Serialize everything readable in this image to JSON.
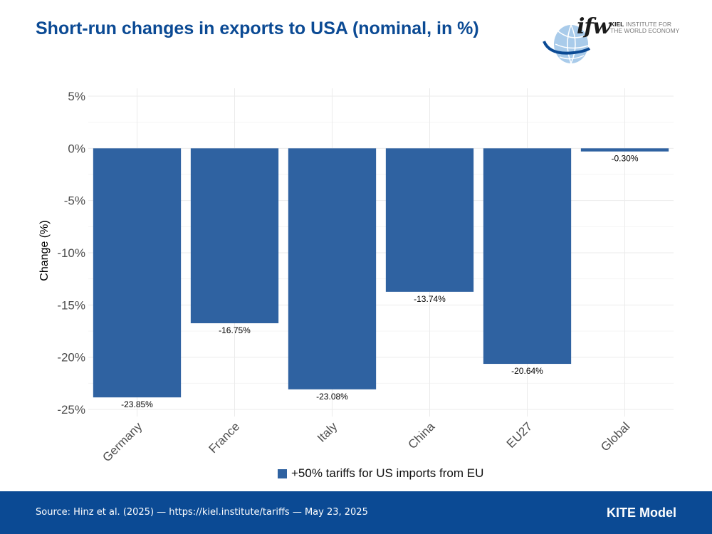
{
  "header": {
    "title": "Short-run changes in exports to USA (nominal, in %)"
  },
  "logo": {
    "mark": "ifw",
    "line1": "KIEL",
    "line1_rest": " INSTITUTE FOR",
    "line2": "THE WORLD ECONOMY"
  },
  "chart_data": {
    "type": "bar",
    "title": "Short-run changes in exports to USA (nominal, in %)",
    "xlabel": "",
    "ylabel": "Change (%)",
    "categories": [
      "Germany",
      "France",
      "Italy",
      "China",
      "EU27",
      "Global"
    ],
    "series": [
      {
        "name": "+50% tariffs for US imports from EU",
        "values": [
          -23.85,
          -16.75,
          -23.08,
          -13.74,
          -20.64,
          -0.3
        ],
        "labels": [
          "-23.85%",
          "-16.75%",
          "-23.08%",
          "-13.74%",
          "-20.64%",
          "-0.30%"
        ]
      }
    ],
    "ylim": [
      -25,
      5
    ],
    "yticks": [
      5,
      0,
      -5,
      -10,
      -15,
      -20,
      -25
    ],
    "ytick_labels": [
      "5%",
      "0%",
      "-5%",
      "-10%",
      "-15%",
      "-20%",
      "-25%"
    ],
    "grid": true,
    "legend_position": "bottom-center"
  },
  "colors": {
    "bar": "#2f62a1",
    "title": "#0b4a94",
    "footer_bg": "#0b4a94",
    "grid": "#ebebeb"
  },
  "legend": {
    "label": "+50% tariffs for US imports from EU"
  },
  "footer": {
    "source": "Source: Hinz et al. (2025) — https://kiel.institute/tariffs — May 23, 2025",
    "model": "KITE Model"
  }
}
